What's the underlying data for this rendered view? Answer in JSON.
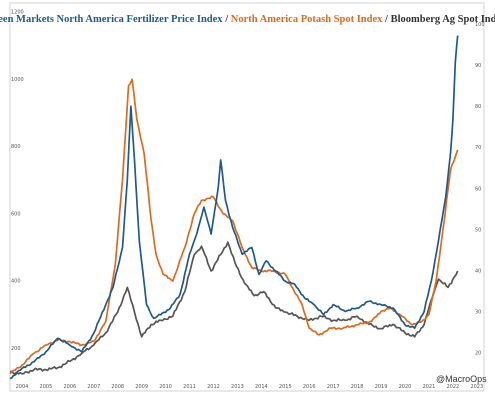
{
  "chart_data": {
    "type": "line",
    "title_parts": [
      {
        "text": "Green Markets North America Fertilizer Price Index",
        "color": "#1f5a8f"
      },
      {
        "text": " / ",
        "color": "#333333"
      },
      {
        "text": "North America Potash Spot Index",
        "color": "#e06a1b"
      },
      {
        "text": " / ",
        "color": "#333333"
      },
      {
        "text": "Bloomberg Ag Spot Index",
        "color": "#333333"
      }
    ],
    "credit": "@MacroOps",
    "x_ticks": [
      "2004",
      "2005",
      "2006",
      "2007",
      "2008",
      "2009",
      "2010",
      "2011",
      "2012",
      "2013",
      "2014",
      "2015",
      "2016",
      "2017",
      "2018",
      "2019",
      "2020",
      "2021",
      "2022",
      "2023"
    ],
    "x_range": [
      2003.5,
      2023.3
    ],
    "left_axis": {
      "ticks": [
        "200",
        "400",
        "600",
        "800",
        "1000",
        "1200"
      ],
      "range": [
        100,
        1200
      ]
    },
    "right_axis": {
      "ticks": [
        "20",
        "30",
        "40",
        "50",
        "60",
        "70",
        "80",
        "90",
        "100"
      ],
      "range": [
        13,
        103
      ]
    },
    "grid": false,
    "series": [
      {
        "color": "#1f5a8f",
        "axis": "left",
        "points": [
          [
            2003.5,
            110
          ],
          [
            2004,
            140
          ],
          [
            2004.5,
            160
          ],
          [
            2005,
            190
          ],
          [
            2005.5,
            230
          ],
          [
            2006,
            210
          ],
          [
            2006.5,
            190
          ],
          [
            2007,
            245
          ],
          [
            2007.5,
            330
          ],
          [
            2007.8,
            380
          ],
          [
            2008.2,
            500
          ],
          [
            2008.4,
            700
          ],
          [
            2008.55,
            920
          ],
          [
            2008.7,
            760
          ],
          [
            2008.9,
            520
          ],
          [
            2009.2,
            330
          ],
          [
            2009.5,
            290
          ],
          [
            2009.8,
            300
          ],
          [
            2010.2,
            320
          ],
          [
            2010.6,
            360
          ],
          [
            2011,
            480
          ],
          [
            2011.3,
            540
          ],
          [
            2011.6,
            620
          ],
          [
            2011.9,
            540
          ],
          [
            2012.2,
            680
          ],
          [
            2012.3,
            760
          ],
          [
            2012.5,
            640
          ],
          [
            2012.8,
            560
          ],
          [
            2013.2,
            480
          ],
          [
            2013.6,
            500
          ],
          [
            2013.9,
            420
          ],
          [
            2014.2,
            460
          ],
          [
            2014.6,
            430
          ],
          [
            2015,
            400
          ],
          [
            2015.4,
            390
          ],
          [
            2015.8,
            350
          ],
          [
            2016.2,
            330
          ],
          [
            2016.6,
            300
          ],
          [
            2017,
            330
          ],
          [
            2017.5,
            310
          ],
          [
            2018,
            320
          ],
          [
            2018.5,
            340
          ],
          [
            2019,
            330
          ],
          [
            2019.5,
            320
          ],
          [
            2020,
            270
          ],
          [
            2020.4,
            260
          ],
          [
            2020.8,
            310
          ],
          [
            2021.1,
            400
          ],
          [
            2021.4,
            520
          ],
          [
            2021.7,
            650
          ],
          [
            2021.9,
            780
          ],
          [
            2022,
            880
          ],
          [
            2022.1,
            1050
          ],
          [
            2022.2,
            1130
          ]
        ]
      },
      {
        "color": "#e06a1b",
        "axis": "left",
        "points": [
          [
            2003.5,
            125
          ],
          [
            2004,
            150
          ],
          [
            2004.5,
            185
          ],
          [
            2005,
            210
          ],
          [
            2005.5,
            225
          ],
          [
            2006,
            220
          ],
          [
            2006.5,
            210
          ],
          [
            2007,
            220
          ],
          [
            2007.5,
            280
          ],
          [
            2007.9,
            450
          ],
          [
            2008.2,
            700
          ],
          [
            2008.45,
            980
          ],
          [
            2008.6,
            1000
          ],
          [
            2008.8,
            880
          ],
          [
            2009.1,
            780
          ],
          [
            2009.4,
            580
          ],
          [
            2009.6,
            480
          ],
          [
            2009.9,
            420
          ],
          [
            2010.3,
            400
          ],
          [
            2010.8,
            500
          ],
          [
            2011.2,
            600
          ],
          [
            2011.5,
            640
          ],
          [
            2012,
            650
          ],
          [
            2012.4,
            600
          ],
          [
            2012.8,
            580
          ],
          [
            2013.2,
            500
          ],
          [
            2013.6,
            440
          ],
          [
            2014,
            430
          ],
          [
            2014.5,
            430
          ],
          [
            2015,
            420
          ],
          [
            2015.3,
            380
          ],
          [
            2015.7,
            330
          ],
          [
            2016,
            260
          ],
          [
            2016.4,
            240
          ],
          [
            2016.9,
            260
          ],
          [
            2017.4,
            260
          ],
          [
            2018,
            270
          ],
          [
            2018.6,
            280
          ],
          [
            2019,
            310
          ],
          [
            2019.4,
            320
          ],
          [
            2019.8,
            300
          ],
          [
            2020.3,
            270
          ],
          [
            2020.7,
            280
          ],
          [
            2021,
            300
          ],
          [
            2021.3,
            400
          ],
          [
            2021.6,
            560
          ],
          [
            2021.9,
            730
          ],
          [
            2022.1,
            770
          ],
          [
            2022.2,
            790
          ]
        ]
      },
      {
        "color": "#555555",
        "axis": "right",
        "points": [
          [
            2003.5,
            15.5
          ],
          [
            2004,
            15
          ],
          [
            2004.5,
            16
          ],
          [
            2005,
            16
          ],
          [
            2005.5,
            16.5
          ],
          [
            2006,
            18
          ],
          [
            2006.5,
            20
          ],
          [
            2007,
            22
          ],
          [
            2007.5,
            25
          ],
          [
            2008,
            30
          ],
          [
            2008.4,
            36
          ],
          [
            2008.7,
            30
          ],
          [
            2009,
            24
          ],
          [
            2009.4,
            27
          ],
          [
            2009.8,
            28
          ],
          [
            2010.3,
            29
          ],
          [
            2010.8,
            35
          ],
          [
            2011.2,
            44
          ],
          [
            2011.5,
            46
          ],
          [
            2011.9,
            40
          ],
          [
            2012.3,
            44
          ],
          [
            2012.6,
            47
          ],
          [
            2012.9,
            42
          ],
          [
            2013.3,
            37
          ],
          [
            2013.7,
            34
          ],
          [
            2014.1,
            35
          ],
          [
            2014.6,
            31
          ],
          [
            2015,
            30
          ],
          [
            2015.5,
            29
          ],
          [
            2016,
            28
          ],
          [
            2016.5,
            29
          ],
          [
            2017,
            28
          ],
          [
            2017.5,
            28
          ],
          [
            2018,
            29
          ],
          [
            2018.5,
            27
          ],
          [
            2019,
            26
          ],
          [
            2019.5,
            27
          ],
          [
            2020,
            25
          ],
          [
            2020.4,
            24
          ],
          [
            2020.8,
            27
          ],
          [
            2021.1,
            33
          ],
          [
            2021.4,
            38
          ],
          [
            2021.8,
            36
          ],
          [
            2022,
            38
          ],
          [
            2022.2,
            40
          ]
        ]
      }
    ]
  }
}
